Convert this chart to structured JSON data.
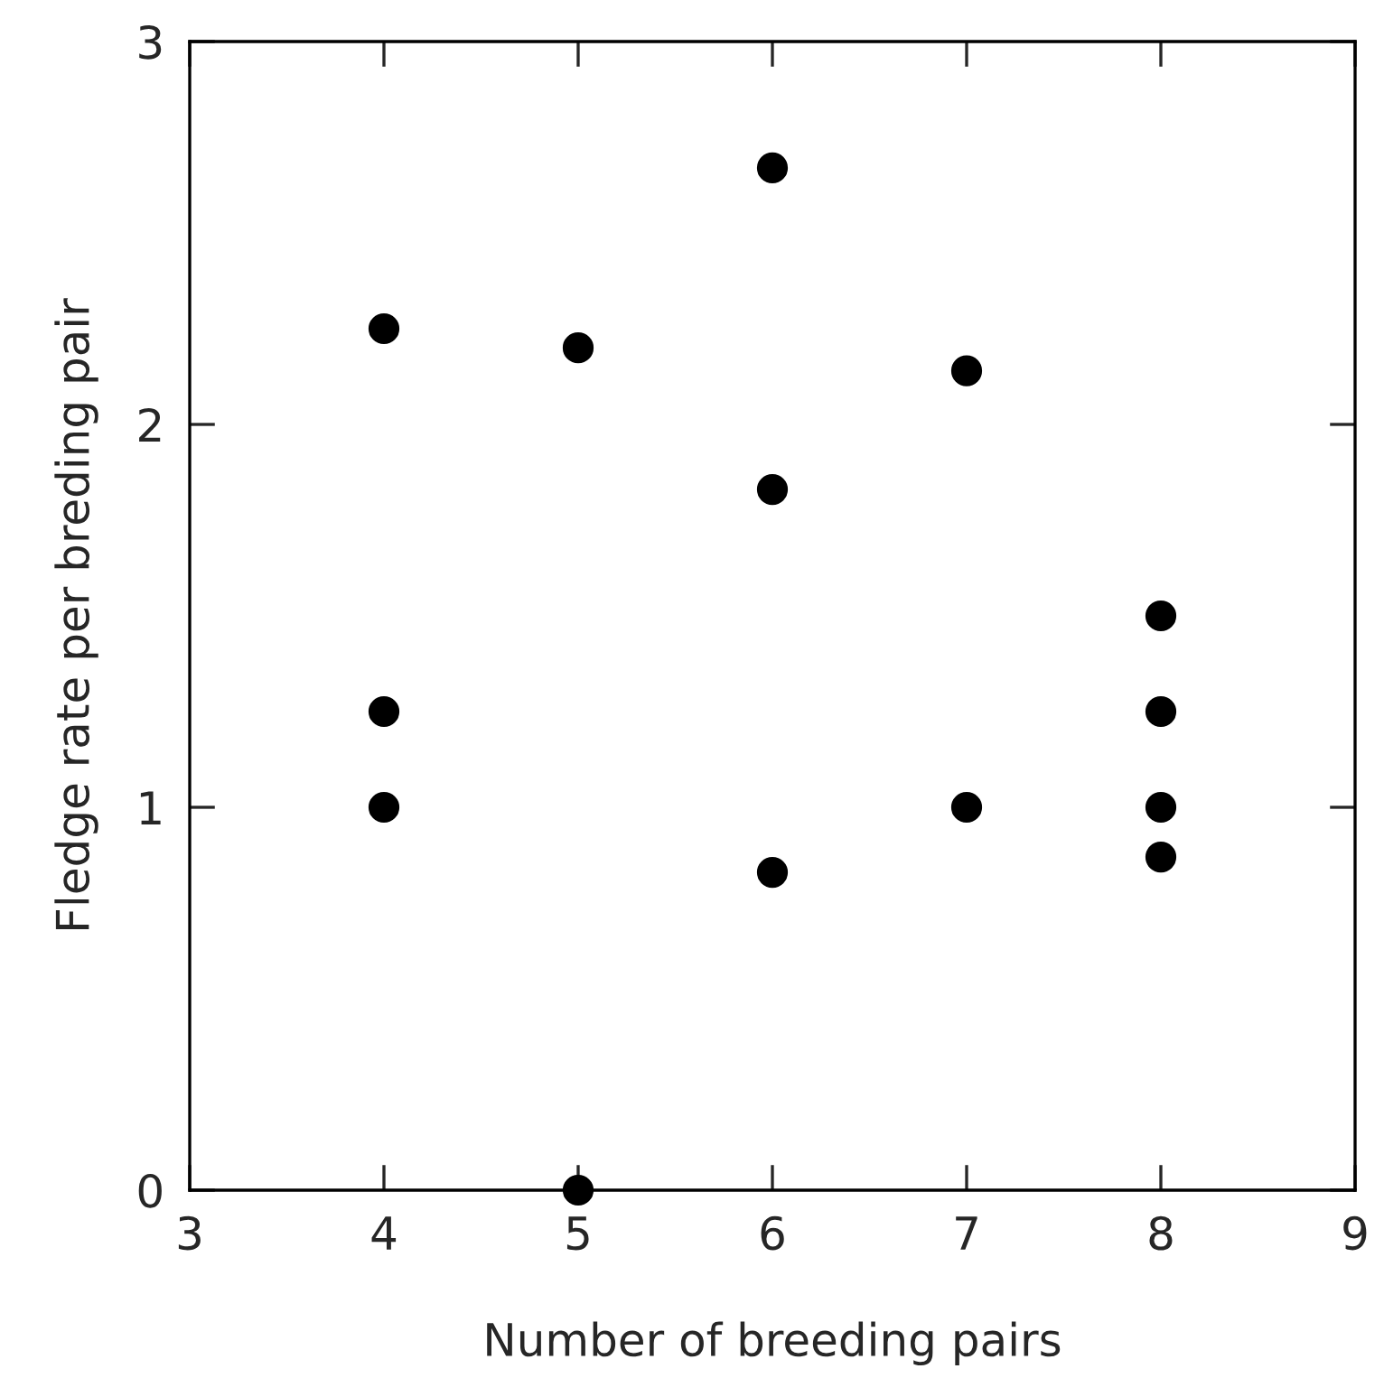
{
  "chart_data": {
    "type": "scatter",
    "xlabel": "Number of breeding pairs",
    "ylabel": "Fledge rate per breding pair",
    "x": [
      4,
      4,
      4,
      5,
      5,
      6,
      6,
      6,
      7,
      7,
      8,
      8,
      8,
      8
    ],
    "series": [
      {
        "color": "#000000",
        "values": [
          2.25,
          1.25,
          1.0,
          2.2,
          0.0,
          2.67,
          1.83,
          0.83,
          2.14,
          1.0,
          1.5,
          1.25,
          1.0,
          0.87
        ]
      }
    ],
    "xlim": [
      3,
      9
    ],
    "ylim": [
      0,
      3
    ],
    "xticks": [
      3,
      4,
      5,
      6,
      7,
      8,
      9
    ],
    "yticks": [
      0,
      1,
      2,
      3
    ],
    "marker": "circle",
    "grid": false,
    "legend": false
  }
}
